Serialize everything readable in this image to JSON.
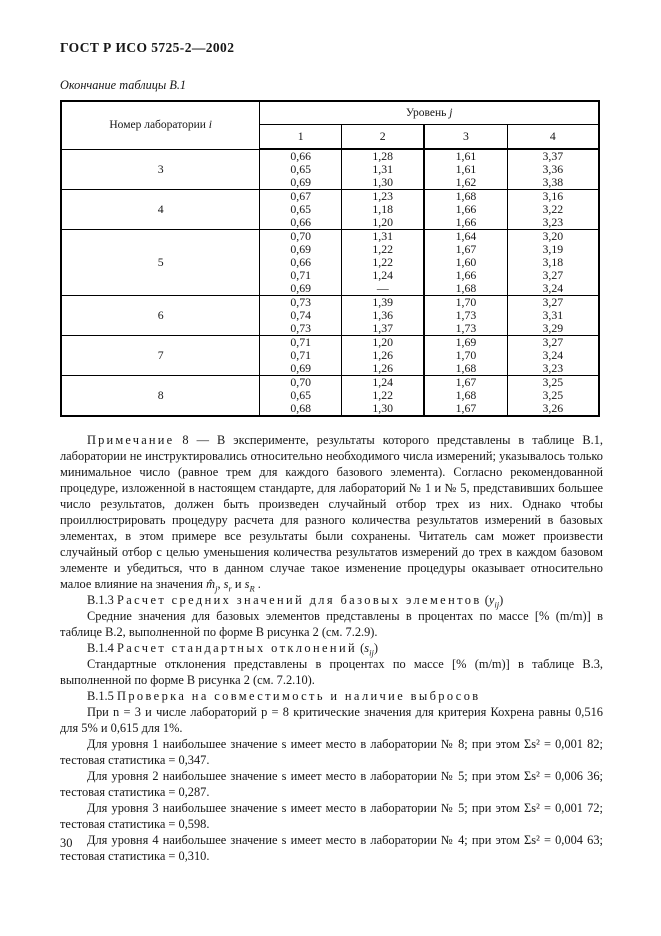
{
  "page": {
    "header": "ГОСТ Р ИСО 5725-2—2002",
    "table_caption": "Окончание таблицы В.1",
    "page_number": "30"
  },
  "table": {
    "col1_header": "Номер лаборатории",
    "col1_var": "i",
    "level_header": "Уровень",
    "level_var": "j",
    "level_columns": [
      "1",
      "2",
      "3",
      "4"
    ],
    "rows": [
      {
        "lab": "3",
        "values": [
          [
            "0,66",
            "0,65",
            "0,69"
          ],
          [
            "1,28",
            "1,31",
            "1,30"
          ],
          [
            "1,61",
            "1,61",
            "1,62"
          ],
          [
            "3,37",
            "3,36",
            "3,38"
          ]
        ]
      },
      {
        "lab": "4",
        "values": [
          [
            "0,67",
            "0,65",
            "0,66"
          ],
          [
            "1,23",
            "1,18",
            "1,20"
          ],
          [
            "1,68",
            "1,66",
            "1,66"
          ],
          [
            "3,16",
            "3,22",
            "3,23"
          ]
        ]
      },
      {
        "lab": "5",
        "values": [
          [
            "0,70",
            "0,69",
            "0,66",
            "0,71",
            "0,69"
          ],
          [
            "1,31",
            "1,22",
            "1,22",
            "1,24",
            "—"
          ],
          [
            "1,64",
            "1,67",
            "1,60",
            "1,66",
            "1,68"
          ],
          [
            "3,20",
            "3,19",
            "3,18",
            "3,27",
            "3,24"
          ]
        ]
      },
      {
        "lab": "6",
        "values": [
          [
            "0,73",
            "0,74",
            "0,73"
          ],
          [
            "1,39",
            "1,36",
            "1,37"
          ],
          [
            "1,70",
            "1,73",
            "1,73"
          ],
          [
            "3,27",
            "3,31",
            "3,29"
          ]
        ]
      },
      {
        "lab": "7",
        "values": [
          [
            "0,71",
            "0,71",
            "0,69"
          ],
          [
            "1,20",
            "1,26",
            "1,26"
          ],
          [
            "1,69",
            "1,70",
            "1,68"
          ],
          [
            "3,27",
            "3,24",
            "3,23"
          ]
        ]
      },
      {
        "lab": "8",
        "values": [
          [
            "0,70",
            "0,65",
            "0,68"
          ],
          [
            "1,24",
            "1,22",
            "1,30"
          ],
          [
            "1,67",
            "1,68",
            "1,67"
          ],
          [
            "3,25",
            "3,25",
            "3,26"
          ]
        ]
      }
    ]
  },
  "note": {
    "label": "Примечание",
    "num_dash": "8 —",
    "body": "В эксперименте, результаты которого представлены в таблице В.1, лаборатории не инструктировались относительно необходимого числа измерений; указывалось только минимальное число (равное трем для каждого базового элемента). Согласно рекомендованной процедуре, изложенной в настоящем стандарте, для лабораторий № 1 и № 5, представивших большее число результатов, должен быть произведен случайный отбор трех из них. Однако чтобы проиллюстрировать процедуру расчета для разного количества результатов измерений в базовых элементах, в этом примере все результаты были сохранены. Читатель сам может произвести случайный отбор с целью уменьшения количества результатов измерений до трех в каждом базовом элементе и убедиться, что в данном случае такое изменение процедуры оказывает относительно малое влияние на значения",
    "f_m": "m̂",
    "f_m_sub": "j",
    "f_c1": ", ",
    "f_s1": "s",
    "f_s1_sub": "r",
    "f_and": " и ",
    "f_s2": "s",
    "f_s2_sub": "R",
    "f_end": " ."
  },
  "sections": {
    "s13": {
      "num": "В.1.3",
      "title": "Расчет средних значений для базовых элементов",
      "f_open": "(",
      "f_base": "y",
      "f_sub": "ij",
      "f_close": ")",
      "paragraph": "Средние значения для базовых элементов представлены в процентах по массе [% (m/m)] в таблице В.2, выполненной по форме В рисунка 2 (см. 7.2.9)."
    },
    "s14": {
      "num": "В.1.4",
      "title": "Расчет стандартных отклонений",
      "f_open": "(",
      "f_base": "s",
      "f_sub": "ij",
      "f_close": ")",
      "paragraph": "Стандартные отклонения представлены в процентах по массе [% (m/m)] в таблице В.3, выполненной по форме В рисунка 2 (см. 7.2.10)."
    },
    "s15": {
      "num": "В.1.5",
      "title": "Проверка на совместимость и наличие выбросов",
      "paragraphs": [
        "При n = 3 и числе лабораторий p = 8 критические значения для критерия Кохрена равны 0,516 для 5% и 0,615 для 1%.",
        "Для уровня 1 наибольшее значение s имеет место в лаборатории № 8; при этом Σs² = 0,001 82; тестовая статистика = 0,347.",
        "Для уровня 2 наибольшее значение s имеет место в лаборатории № 5; при этом Σs² = 0,006 36; тестовая статистика = 0,287.",
        "Для уровня 3 наибольшее значение s имеет место в лаборатории № 5; при этом Σs² = 0,001 72; тестовая статистика = 0,598.",
        "Для уровня 4 наибольшее значение s имеет место в лаборатории № 4; при этом Σs² = 0,004 63; тестовая статистика = 0,310."
      ]
    }
  }
}
